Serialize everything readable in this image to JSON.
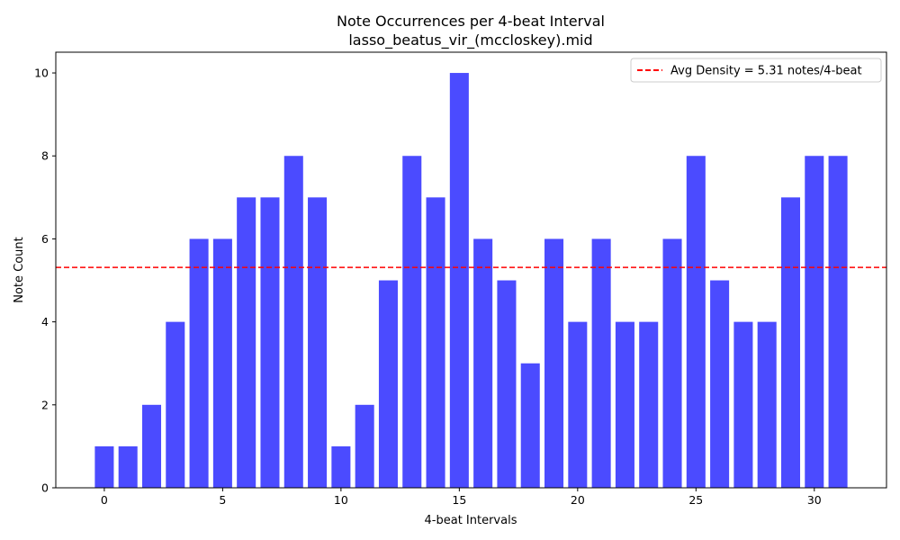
{
  "chart_data": {
    "type": "bar",
    "title": "Note Occurrences per 4-beat Interval",
    "subtitle": "lasso_beatus_vir_(mccloskey).mid",
    "xlabel": "4-beat Intervals",
    "ylabel": "Note Count",
    "x": [
      0,
      1,
      2,
      3,
      4,
      5,
      6,
      7,
      8,
      9,
      10,
      11,
      12,
      13,
      14,
      15,
      16,
      17,
      18,
      19,
      20,
      21,
      22,
      23,
      24,
      25,
      26,
      27,
      28,
      29,
      30,
      31
    ],
    "values": [
      1,
      1,
      2,
      4,
      6,
      6,
      7,
      7,
      8,
      7,
      1,
      2,
      5,
      8,
      7,
      10,
      6,
      5,
      3,
      6,
      4,
      6,
      4,
      4,
      6,
      8,
      5,
      4,
      4,
      7,
      8,
      8
    ],
    "xlim": [
      -2.05,
      33.05
    ],
    "ylim": [
      0,
      10.5
    ],
    "xticks": [
      0,
      5,
      10,
      15,
      20,
      25,
      30
    ],
    "yticks": [
      0,
      2,
      4,
      6,
      8,
      10
    ],
    "grid": false,
    "bar_color": "#4b4bff",
    "reference_line": {
      "y": 5.3125,
      "color": "#ff0000",
      "style": "dashed",
      "label": "Avg Density = 5.31 notes/4-beat"
    },
    "legend_position": "top-right"
  }
}
